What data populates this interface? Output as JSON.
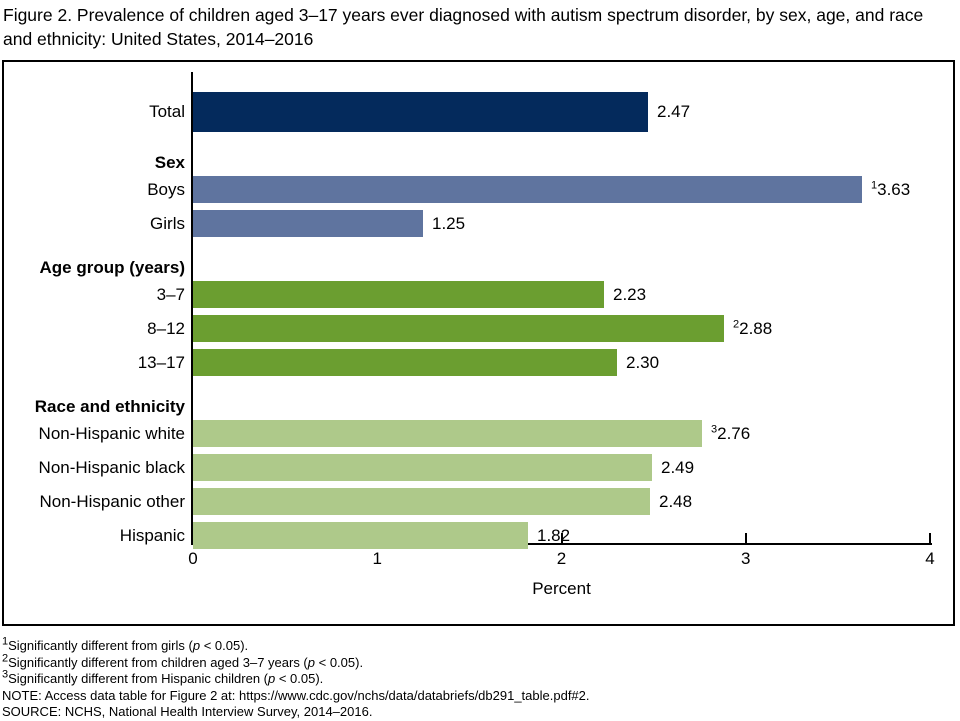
{
  "title_lines": [
    "Figure 2. Prevalence of children aged 3–17 years ever diagnosed with autism spectrum disorder, by sex, age, and race",
    "and ethnicity: United States, 2014–2016"
  ],
  "chart_data": {
    "type": "bar",
    "orientation": "horizontal",
    "title": "Figure 2. Prevalence of children aged 3–17 years ever diagnosed with autism spectrum disorder, by sex, age, and race and ethnicity: United States, 2014–2016",
    "xlabel": "Percent",
    "xlim": [
      0,
      4
    ],
    "xticks": [
      "0",
      "1",
      "2",
      "3",
      "4"
    ],
    "grid": false,
    "legend": false,
    "colors": {
      "total": "#042A5C",
      "sex": "#5F749F",
      "age": "#6B9E30",
      "race": "#AEC98A"
    },
    "groups": [
      {
        "header": null,
        "color": "#042A5C",
        "bars": [
          {
            "label": "Total",
            "value": 2.47,
            "display": "2.47",
            "sup": null
          }
        ]
      },
      {
        "header": "Sex",
        "color": "#5F749F",
        "bars": [
          {
            "label": "Boys",
            "value": 3.63,
            "display": "3.63",
            "sup": "1"
          },
          {
            "label": "Girls",
            "value": 1.25,
            "display": "1.25",
            "sup": null
          }
        ]
      },
      {
        "header": "Age group (years)",
        "color": "#6B9E30",
        "bars": [
          {
            "label": "3–7",
            "value": 2.23,
            "display": "2.23",
            "sup": null
          },
          {
            "label": "8–12",
            "value": 2.88,
            "display": "2.88",
            "sup": "2"
          },
          {
            "label": "13–17",
            "value": 2.3,
            "display": "2.30",
            "sup": null
          }
        ]
      },
      {
        "header": "Race and ethnicity",
        "color": "#AEC98A",
        "bars": [
          {
            "label": "Non-Hispanic white",
            "value": 2.76,
            "display": "2.76",
            "sup": "3"
          },
          {
            "label": "Non-Hispanic black",
            "value": 2.49,
            "display": "2.49",
            "sup": null
          },
          {
            "label": "Non-Hispanic other",
            "value": 2.48,
            "display": "2.48",
            "sup": null
          },
          {
            "label": "Hispanic",
            "value": 1.82,
            "display": "1.82",
            "sup": null
          }
        ]
      }
    ]
  },
  "footnotes": [
    {
      "sup": "1",
      "text": "Significantly different from girls (p < 0.05)."
    },
    {
      "sup": "2",
      "text": "Significantly different from children aged 3–7 years (p < 0.05)."
    },
    {
      "sup": "3",
      "text": "Significantly different from Hispanic children (p < 0.05)."
    },
    {
      "sup": null,
      "text": "NOTE: Access data table for Figure 2 at: https://www.cdc.gov/nchs/data/databriefs/db291_table.pdf#2."
    },
    {
      "sup": null,
      "text": "SOURCE: NCHS, National Health Interview Survey, 2014–2016."
    }
  ]
}
